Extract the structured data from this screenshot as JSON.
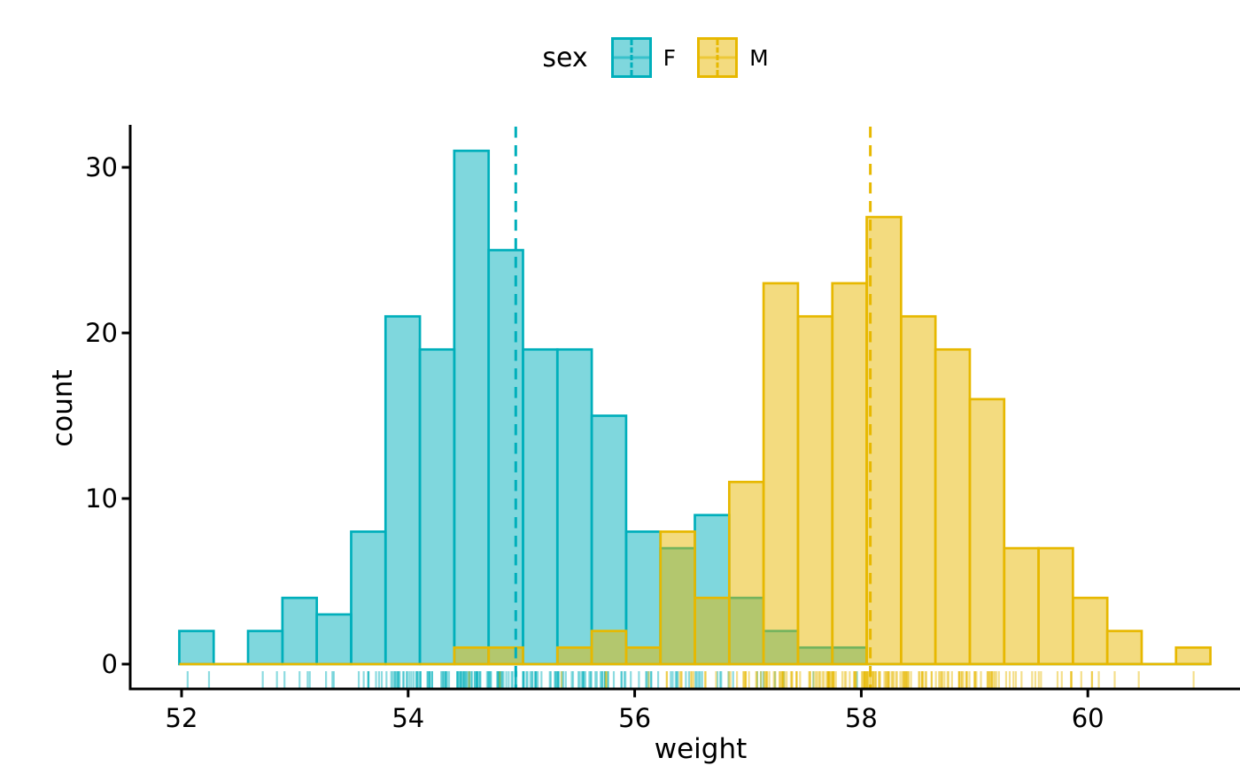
{
  "chart_data": {
    "type": "histogram",
    "title": "",
    "xlabel": "weight",
    "ylabel": "count",
    "x_ticks": [
      52,
      54,
      56,
      58,
      60
    ],
    "y_ticks": [
      0,
      10,
      20,
      30
    ],
    "xlim": [
      51.55,
      61.6
    ],
    "ylim": [
      0,
      32.6
    ],
    "grid": false,
    "legend_position": "top-center",
    "legend_title": "sex",
    "bin_start": 51.98,
    "bin_width": 0.3034,
    "bins": 30,
    "n_per_group": 200,
    "rug": {
      "shown": true,
      "position": "bottom"
    },
    "series": [
      {
        "name": "F",
        "color": "#00AFBB",
        "fill_opacity": 0.5,
        "mean_line": 54.95,
        "mean_line_style": "dashed",
        "counts": [
          2,
          0,
          2,
          4,
          3,
          8,
          21,
          19,
          31,
          25,
          19,
          19,
          15,
          8,
          7,
          9,
          4,
          2,
          1,
          1,
          0,
          0,
          0,
          0,
          0,
          0,
          0,
          0,
          0,
          0
        ]
      },
      {
        "name": "M",
        "color": "#E7B800",
        "fill_opacity": 0.5,
        "mean_line": 58.08,
        "mean_line_style": "dashed",
        "counts": [
          0,
          0,
          0,
          0,
          0,
          0,
          0,
          0,
          1,
          1,
          0,
          1,
          2,
          1,
          8,
          4,
          11,
          23,
          21,
          23,
          27,
          21,
          19,
          16,
          7,
          7,
          4,
          2,
          0,
          1
        ]
      }
    ]
  },
  "legend": {
    "title": "sex",
    "items": [
      {
        "label": "F",
        "color": "#00AFBB"
      },
      {
        "label": "M",
        "color": "#E7B800"
      }
    ]
  },
  "axes": {
    "x_title": "weight",
    "y_title": "count"
  }
}
